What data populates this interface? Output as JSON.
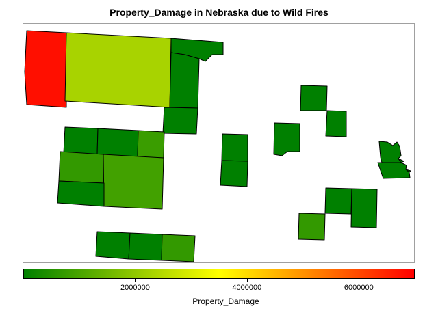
{
  "title": "Property_Damage in Nebraska due to Wild Fires",
  "legend": {
    "label": "Property_Damage",
    "min": 0,
    "max": 7000000,
    "ticks": [
      {
        "value": 2000000,
        "label": "2000000"
      },
      {
        "value": 4000000,
        "label": "4000000"
      },
      {
        "value": 6000000,
        "label": "6000000"
      }
    ],
    "colors": [
      "#008000",
      "#ffff00",
      "#ff0000"
    ]
  },
  "counties": [
    {
      "id": "c1",
      "value": 6800000
    },
    {
      "id": "c2",
      "value": 2300000
    },
    {
      "id": "c3",
      "value": 0
    },
    {
      "id": "c4",
      "value": 0
    },
    {
      "id": "c5",
      "value": 0
    },
    {
      "id": "c6",
      "value": 0
    },
    {
      "id": "c7",
      "value": 0
    },
    {
      "id": "c8",
      "value": 800000
    },
    {
      "id": "c9",
      "value": 700000
    },
    {
      "id": "c10",
      "value": 900000
    },
    {
      "id": "c11",
      "value": 0
    },
    {
      "id": "c12",
      "value": 0
    },
    {
      "id": "c13",
      "value": 0
    },
    {
      "id": "c14",
      "value": 700000
    },
    {
      "id": "c15",
      "value": 0
    },
    {
      "id": "c16",
      "value": 0
    },
    {
      "id": "c17",
      "value": 0
    },
    {
      "id": "c18",
      "value": 0
    },
    {
      "id": "c19",
      "value": 0
    },
    {
      "id": "c20",
      "value": 0
    },
    {
      "id": "c21",
      "value": 0
    },
    {
      "id": "c22",
      "value": 700000
    },
    {
      "id": "c23",
      "value": 0
    },
    {
      "id": "c24",
      "value": 0
    },
    {
      "id": "c25",
      "value": 0
    },
    {
      "id": "c26",
      "value": 0
    }
  ]
}
